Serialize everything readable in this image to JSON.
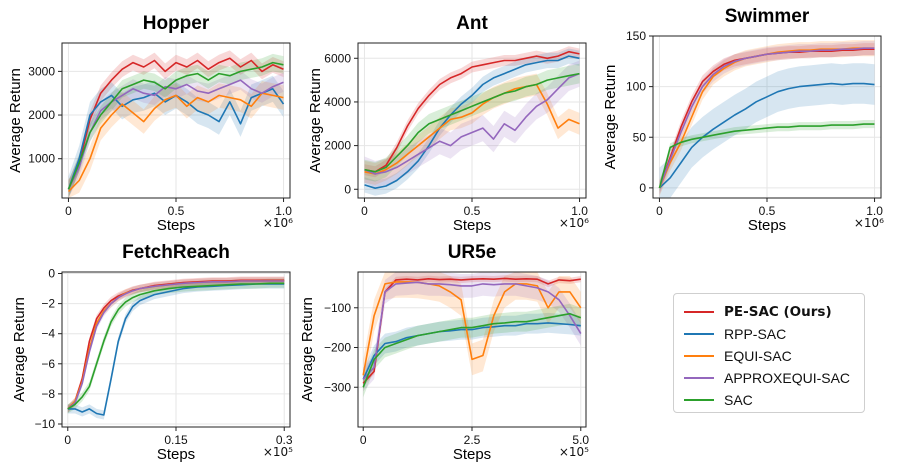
{
  "chart_data": [
    {
      "type": "line",
      "title": "Hopper",
      "xlabel": "Steps",
      "ylabel": "Average Return",
      "x_multiplier": "×10⁶",
      "xlim": [
        -0.03,
        1.03
      ],
      "ylim": [
        100,
        3650
      ],
      "xticks": [
        0,
        0.5,
        1.0
      ],
      "xtick_labels": [
        "0",
        "0.5",
        "1.0"
      ],
      "yticks": [
        1000,
        2000,
        3000
      ],
      "ytick_labels": [
        "1000",
        "2000",
        "3000"
      ],
      "grid": true,
      "x": [
        0,
        0.05,
        0.1,
        0.15,
        0.2,
        0.25,
        0.3,
        0.35,
        0.4,
        0.45,
        0.5,
        0.55,
        0.6,
        0.65,
        0.7,
        0.75,
        0.8,
        0.85,
        0.9,
        0.95,
        1.0
      ],
      "series": [
        {
          "name": "PE-SAC (Ours)",
          "values": [
            300,
            900,
            1900,
            2500,
            2800,
            3050,
            3200,
            3100,
            3250,
            3000,
            3200,
            3100,
            3250,
            3050,
            3200,
            3300,
            3100,
            3250,
            3000,
            3150,
            3050
          ],
          "band": 180
        },
        {
          "name": "RPP-SAC",
          "values": [
            300,
            1000,
            2000,
            2300,
            2450,
            2200,
            2350,
            2400,
            2500,
            2300,
            2450,
            2300,
            2100,
            2000,
            1850,
            2300,
            1800,
            2400,
            2500,
            2600,
            2250
          ],
          "band": 300
        },
        {
          "name": "EQUI-SAC",
          "values": [
            250,
            500,
            1000,
            1700,
            2000,
            2250,
            2050,
            1850,
            2150,
            2350,
            2450,
            2200,
            2400,
            2300,
            2450,
            2400,
            2350,
            2200,
            2500,
            2450,
            2400
          ],
          "band": 280
        },
        {
          "name": "APPROXEQUI-SAC",
          "values": [
            300,
            800,
            1600,
            2100,
            2300,
            2450,
            2600,
            2500,
            2450,
            2650,
            2600,
            2700,
            2550,
            2500,
            2600,
            2700,
            2800,
            2600,
            2500,
            2650,
            2750
          ],
          "band": 220
        },
        {
          "name": "SAC",
          "values": [
            300,
            900,
            1600,
            2000,
            2300,
            2600,
            2700,
            2800,
            2750,
            2600,
            2800,
            2900,
            2950,
            2800,
            2950,
            2900,
            3000,
            3050,
            3100,
            3200,
            3150
          ],
          "band": 200
        }
      ]
    },
    {
      "type": "line",
      "title": "Ant",
      "xlabel": "Steps",
      "ylabel": "Average Return",
      "x_multiplier": "×10⁶",
      "xlim": [
        -0.03,
        1.03
      ],
      "ylim": [
        -400,
        6700
      ],
      "xticks": [
        0,
        0.5,
        1.0
      ],
      "xtick_labels": [
        "0",
        "0.5",
        "1.0"
      ],
      "yticks": [
        0,
        2000,
        4000,
        6000
      ],
      "ytick_labels": [
        "0",
        "2000",
        "4000",
        "6000"
      ],
      "grid": true,
      "x": [
        0,
        0.05,
        0.1,
        0.15,
        0.2,
        0.25,
        0.3,
        0.35,
        0.4,
        0.45,
        0.5,
        0.55,
        0.6,
        0.65,
        0.7,
        0.75,
        0.8,
        0.85,
        0.9,
        0.95,
        1.0
      ],
      "series": [
        {
          "name": "PE-SAC (Ours)",
          "values": [
            900,
            800,
            1100,
            1900,
            2900,
            3700,
            4300,
            4800,
            5100,
            5300,
            5600,
            5700,
            5800,
            5900,
            5900,
            6000,
            6100,
            6000,
            6100,
            6300,
            6200
          ],
          "band": 250
        },
        {
          "name": "RPP-SAC",
          "values": [
            200,
            50,
            150,
            400,
            800,
            1300,
            2000,
            2800,
            3400,
            3900,
            4300,
            4800,
            5100,
            5300,
            5500,
            5700,
            5800,
            5900,
            5900,
            6100,
            6000
          ],
          "band": 350
        },
        {
          "name": "EQUI-SAC",
          "values": [
            800,
            700,
            900,
            1200,
            1600,
            2000,
            2400,
            2800,
            3200,
            3300,
            3500,
            3900,
            4200,
            4400,
            4600,
            4700,
            4800,
            3900,
            2800,
            3200,
            3000
          ],
          "band": 500
        },
        {
          "name": "APPROXEQUI-SAC",
          "values": [
            900,
            700,
            800,
            1000,
            1300,
            1600,
            1900,
            2200,
            2000,
            2400,
            2600,
            2800,
            2300,
            3000,
            2700,
            3300,
            3800,
            4100,
            4600,
            5100,
            5300
          ],
          "band": 600
        },
        {
          "name": "SAC",
          "values": [
            900,
            800,
            1000,
            1500,
            2000,
            2600,
            3000,
            3200,
            3400,
            3600,
            3800,
            4000,
            4200,
            4400,
            4500,
            4700,
            4800,
            5000,
            5100,
            5200,
            5300
          ],
          "band": 450
        }
      ]
    },
    {
      "type": "line",
      "title": "Swimmer",
      "xlabel": "Steps",
      "ylabel": "Average Return",
      "x_multiplier": "×10⁶",
      "xlim": [
        -0.03,
        1.03
      ],
      "ylim": [
        -10,
        150
      ],
      "xticks": [
        0,
        0.5,
        1.0
      ],
      "xtick_labels": [
        "0",
        "0.5",
        "1.0"
      ],
      "yticks": [
        0,
        50,
        100,
        150
      ],
      "ytick_labels": [
        "0",
        "50",
        "100",
        "150"
      ],
      "grid": true,
      "x": [
        0,
        0.05,
        0.1,
        0.15,
        0.2,
        0.25,
        0.3,
        0.35,
        0.4,
        0.45,
        0.5,
        0.55,
        0.6,
        0.65,
        0.7,
        0.75,
        0.8,
        0.85,
        0.9,
        0.95,
        1.0
      ],
      "series": [
        {
          "name": "PE-SAC (Ours)",
          "values": [
            0,
            30,
            60,
            85,
            105,
            115,
            122,
            126,
            128,
            130,
            132,
            133,
            134,
            134,
            135,
            135,
            135,
            136,
            136,
            137,
            137
          ],
          "band": 6
        },
        {
          "name": "RPP-SAC",
          "values": [
            0,
            10,
            25,
            40,
            50,
            58,
            65,
            72,
            78,
            85,
            90,
            95,
            98,
            100,
            101,
            102,
            103,
            102,
            103,
            103,
            102
          ],
          "band": 20
        },
        {
          "name": "EQUI-SAC",
          "values": [
            0,
            25,
            45,
            70,
            95,
            110,
            118,
            124,
            128,
            130,
            132,
            134,
            135,
            136,
            136,
            137,
            137,
            137,
            138,
            138,
            138
          ],
          "band": 8
        },
        {
          "name": "APPROXEQUI-SAC",
          "values": [
            0,
            28,
            55,
            80,
            100,
            112,
            120,
            125,
            128,
            130,
            132,
            133,
            134,
            135,
            135,
            136,
            136,
            137,
            137,
            138,
            138
          ],
          "band": 7
        },
        {
          "name": "SAC",
          "values": [
            0,
            40,
            45,
            48,
            50,
            52,
            54,
            56,
            57,
            58,
            59,
            60,
            60,
            61,
            61,
            61,
            62,
            62,
            62,
            63,
            63
          ],
          "band": 4
        }
      ]
    },
    {
      "type": "line",
      "title": "FetchReach",
      "xlabel": "Steps",
      "ylabel": "Average Return",
      "x_multiplier": "×10⁵",
      "xlim": [
        -0.008,
        0.308
      ],
      "ylim": [
        -10.2,
        0.1
      ],
      "xticks": [
        0,
        0.15,
        0.3
      ],
      "xtick_labels": [
        "0",
        "0.15",
        "0.3"
      ],
      "yticks": [
        -10,
        -8,
        -6,
        -4,
        -2,
        0
      ],
      "ytick_labels": [
        "−10",
        "−8",
        "−6",
        "−4",
        "−2",
        "0"
      ],
      "grid": true,
      "x": [
        0,
        0.01,
        0.02,
        0.03,
        0.04,
        0.05,
        0.06,
        0.07,
        0.08,
        0.09,
        0.1,
        0.12,
        0.14,
        0.16,
        0.18,
        0.2,
        0.22,
        0.24,
        0.26,
        0.28,
        0.3
      ],
      "series": [
        {
          "name": "PE-SAC (Ours)",
          "values": [
            -9,
            -8.5,
            -7,
            -4.5,
            -3,
            -2.3,
            -1.8,
            -1.5,
            -1.3,
            -1.1,
            -1.0,
            -0.8,
            -0.7,
            -0.6,
            -0.55,
            -0.5,
            -0.5,
            -0.45,
            -0.45,
            -0.45,
            -0.45
          ],
          "band": 0.25
        },
        {
          "name": "RPP-SAC",
          "values": [
            -9,
            -9,
            -9.2,
            -9,
            -9.3,
            -9.4,
            -7,
            -4.5,
            -3,
            -2.2,
            -1.8,
            -1.4,
            -1.2,
            -1.0,
            -0.9,
            -0.85,
            -0.8,
            -0.75,
            -0.7,
            -0.7,
            -0.7
          ],
          "band": 0.3
        },
        {
          "name": "EQUI-SAC",
          "values": [
            -9,
            -8.5,
            -7.2,
            -5,
            -3.3,
            -2.5,
            -2.0,
            -1.6,
            -1.3,
            -1.15,
            -1.0,
            -0.85,
            -0.75,
            -0.65,
            -0.6,
            -0.55,
            -0.55,
            -0.5,
            -0.5,
            -0.5,
            -0.5
          ],
          "band": 0.25
        },
        {
          "name": "APPROXEQUI-SAC",
          "values": [
            -9,
            -8.6,
            -7.3,
            -5.2,
            -3.5,
            -2.6,
            -2.0,
            -1.6,
            -1.35,
            -1.15,
            -1.0,
            -0.85,
            -0.75,
            -0.65,
            -0.6,
            -0.55,
            -0.55,
            -0.5,
            -0.5,
            -0.5,
            -0.5
          ],
          "band": 0.25
        },
        {
          "name": "SAC",
          "values": [
            -9,
            -8.7,
            -8.2,
            -7.5,
            -6,
            -4.5,
            -3.2,
            -2.4,
            -1.9,
            -1.6,
            -1.4,
            -1.15,
            -1.0,
            -0.9,
            -0.85,
            -0.8,
            -0.75,
            -0.7,
            -0.7,
            -0.65,
            -0.65
          ],
          "band": 0.3
        }
      ]
    },
    {
      "type": "line",
      "title": "UR5e",
      "xlabel": "Steps",
      "ylabel": "Average Return",
      "x_multiplier": "×10⁵",
      "xlim": [
        -0.12,
        5.12
      ],
      "ylim": [
        -400,
        -10
      ],
      "xticks": [
        0,
        2.5,
        5.0
      ],
      "xtick_labels": [
        "0",
        "2.5",
        "5.0"
      ],
      "yticks": [
        -300,
        -200,
        -100
      ],
      "ytick_labels": [
        "−300",
        "−200",
        "−100"
      ],
      "grid": true,
      "x": [
        0,
        0.25,
        0.5,
        0.75,
        1.0,
        1.25,
        1.5,
        1.75,
        2.0,
        2.25,
        2.5,
        2.75,
        3.0,
        3.25,
        3.5,
        3.75,
        4.0,
        4.25,
        4.5,
        4.75,
        5.0
      ],
      "series": [
        {
          "name": "PE-SAC (Ours)",
          "values": [
            -290,
            -260,
            -60,
            -30,
            -28,
            -30,
            -27,
            -29,
            -28,
            -30,
            -28,
            -27,
            -28,
            -26,
            -28,
            -27,
            -28,
            -40,
            -30,
            -32,
            -28
          ],
          "band": 8
        },
        {
          "name": "RPP-SAC",
          "values": [
            -280,
            -220,
            -190,
            -185,
            -175,
            -170,
            -165,
            -160,
            -158,
            -155,
            -155,
            -150,
            -148,
            -145,
            -145,
            -140,
            -140,
            -138,
            -140,
            -142,
            -145
          ],
          "band": 25
        },
        {
          "name": "EQUI-SAC",
          "values": [
            -270,
            -120,
            -40,
            -35,
            -35,
            -36,
            -40,
            -45,
            -60,
            -80,
            -230,
            -220,
            -120,
            -60,
            -40,
            -40,
            -45,
            -100,
            -60,
            -60,
            -100
          ],
          "band": 40
        },
        {
          "name": "APPROXEQUI-SAC",
          "values": [
            -280,
            -250,
            -60,
            -40,
            -38,
            -36,
            -40,
            -40,
            -42,
            -45,
            -45,
            -40,
            -42,
            -40,
            -40,
            -45,
            -50,
            -60,
            -80,
            -120,
            -165
          ],
          "band": 30
        },
        {
          "name": "SAC",
          "values": [
            -300,
            -230,
            -200,
            -190,
            -180,
            -170,
            -165,
            -160,
            -155,
            -150,
            -150,
            -145,
            -140,
            -138,
            -135,
            -135,
            -130,
            -125,
            -120,
            -115,
            -125
          ],
          "band": 25
        }
      ]
    }
  ],
  "legend": {
    "placement": "bottom-right",
    "items": [
      {
        "label": "PE-SAC (Ours)",
        "color": "#d62728",
        "bold": true
      },
      {
        "label": "RPP-SAC",
        "color": "#1f77b4",
        "bold": false
      },
      {
        "label": "EQUI-SAC",
        "color": "#ff7f0e",
        "bold": false
      },
      {
        "label": "APPROXEQUI-SAC",
        "color": "#9467bd",
        "bold": false
      },
      {
        "label": "SAC",
        "color": "#2ca02c",
        "bold": false
      }
    ]
  }
}
